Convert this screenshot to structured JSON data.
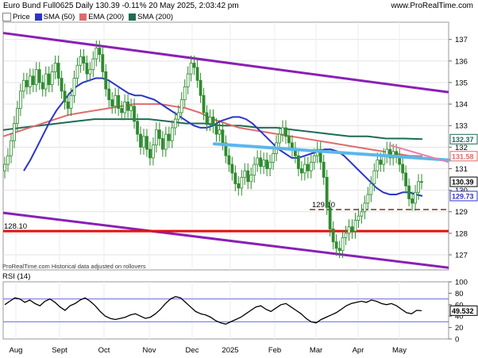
{
  "header": {
    "title": "Euro Bund Full0625 Daily 130.39 -0.11% 20 May 2025, 2:03:42 pm",
    "site": "www.ProRealTime.com"
  },
  "legend": [
    {
      "label": "Price",
      "color": "#ffffff",
      "border": "#888888"
    },
    {
      "label": "SMA (50)",
      "color": "#2b35c9"
    },
    {
      "label": "EMA (200)",
      "color": "#e06a6a"
    },
    {
      "label": "SMA (200)",
      "color": "#1e6b55"
    }
  ],
  "footnote": "ProRealTime.com Historical data adjusted on rollovers",
  "rsi_label": "RSI (14)",
  "colors": {
    "candle_up": "#2e8b2e",
    "candle_down": "#2e8b2e",
    "channel": "#8a1fb5",
    "trend_blue": "#5ab8ea",
    "trend_pink": "#f07ab0",
    "support_red": "#e01010",
    "dashed_brown": "#6b3a1e",
    "sma50": "#2b35c9",
    "ema200": "#e06a6a",
    "sma200": "#1e6b55",
    "rsi": "#000000",
    "rsi_band": "#6a6adf"
  },
  "chart_data": [
    {
      "type": "line",
      "name": "price",
      "x_labels": [
        "Aug",
        "Sept",
        "Oct",
        "Nov",
        "Dec",
        "2025",
        "Feb",
        "Mar",
        "Apr",
        "May"
      ],
      "ylim": [
        126.3,
        137.8
      ],
      "y_ticks": [
        127,
        128,
        129,
        130,
        131,
        132,
        133,
        134,
        135,
        136,
        137
      ],
      "last_price": 130.39,
      "change_pct": "-0.11%",
      "price_tags": [
        {
          "label": "132.37",
          "value": 132.37,
          "color": "#1e6b55"
        },
        {
          "label": "131.58",
          "value": 131.58,
          "color": "#e06a6a"
        },
        {
          "label": "130.39",
          "value": 130.39,
          "color": "#000000"
        },
        {
          "label": "129.73",
          "value": 129.73,
          "color": "#2b35c9"
        }
      ],
      "annotations": [
        {
          "label": "128.10",
          "value": 128.1
        },
        {
          "label": "129.10",
          "value": 129.1
        }
      ],
      "close_series": [
        131.2,
        131.6,
        132.3,
        133.1,
        133.8,
        134.6,
        135.1,
        134.8,
        135.3,
        134.9,
        135.6,
        135.0,
        134.7,
        135.4,
        134.9,
        135.5,
        135.9,
        135.2,
        134.6,
        134.1,
        133.8,
        134.4,
        135.2,
        135.8,
        136.2,
        135.9,
        135.4,
        135.6,
        136.1,
        136.6,
        136.3,
        135.5,
        134.7,
        134.2,
        133.9,
        134.4,
        133.8,
        133.6,
        134.1,
        133.7,
        133.9,
        133.2,
        132.6,
        132.0,
        132.5,
        131.9,
        131.5,
        132.1,
        132.8,
        132.4,
        131.9,
        132.6,
        132.3,
        132.9,
        133.3,
        133.6,
        134.2,
        134.8,
        135.4,
        135.9,
        135.7,
        135.1,
        134.4,
        133.6,
        133.1,
        133.4,
        133.0,
        132.6,
        132.8,
        132.2,
        131.6,
        131.2,
        130.8,
        130.3,
        130.1,
        130.6,
        130.9,
        130.4,
        130.7,
        131.2,
        131.5,
        131.1,
        131.4,
        131.0,
        131.3,
        131.7,
        132.2,
        132.6,
        132.9,
        132.5,
        132.2,
        131.9,
        131.6,
        131.0,
        130.8,
        131.2,
        130.9,
        131.3,
        131.6,
        131.9,
        131.3,
        130.6,
        129.2,
        128.2,
        127.6,
        127.3,
        127.2,
        127.8,
        128.0,
        128.3,
        128.1,
        128.6,
        128.8,
        129.0,
        129.4,
        129.8,
        130.3,
        130.9,
        131.4,
        131.2,
        131.6,
        131.9,
        131.5,
        131.8,
        131.6,
        131.2,
        130.8,
        130.2,
        129.6,
        129.4,
        129.9,
        130.4,
        130.39
      ],
      "series": [
        {
          "name": "SMA (50)",
          "values": [
            130.9,
            131.4,
            132.0,
            132.6,
            133.2,
            133.7,
            134.1,
            134.5,
            134.8,
            135.0,
            135.1,
            135.2,
            135.2,
            135.1,
            134.9,
            134.7,
            134.5,
            134.4,
            134.4,
            134.3,
            134.2,
            134.0,
            133.8,
            133.6,
            133.4,
            133.2,
            133.0,
            132.9,
            132.9,
            133.0,
            133.2,
            133.3,
            133.4,
            133.4,
            133.3,
            133.1,
            132.8,
            132.5,
            132.2,
            131.9,
            131.7,
            131.5,
            131.5,
            131.6,
            131.7,
            131.8,
            131.9,
            131.9,
            131.8,
            131.6,
            131.3,
            131.0,
            130.7,
            130.4,
            130.1,
            129.9,
            129.8,
            129.8,
            129.9,
            129.9,
            129.8,
            129.73
          ]
        },
        {
          "name": "EMA (200)",
          "values": [
            132.5,
            132.7,
            132.9,
            133.1,
            133.3,
            133.5,
            133.6,
            133.7,
            133.8,
            133.9,
            134.0,
            134.0,
            134.0,
            133.9,
            133.8,
            133.6,
            133.3,
            133.1,
            132.9,
            132.8,
            132.7,
            132.6,
            132.5,
            132.4,
            132.3,
            132.2,
            132.1,
            132.0,
            131.9,
            131.8,
            131.7,
            131.6,
            131.58
          ]
        },
        {
          "name": "SMA (200)",
          "values": [
            132.8,
            132.9,
            133.0,
            133.1,
            133.2,
            133.3,
            133.3,
            133.3,
            133.3,
            133.2,
            133.1,
            133.1,
            133.0,
            133.0,
            132.9,
            132.9,
            132.8,
            132.7,
            132.6,
            132.5,
            132.5,
            132.4,
            132.4,
            132.37
          ]
        }
      ]
    },
    {
      "type": "line",
      "name": "RSI (14)",
      "ylim": [
        0,
        100
      ],
      "y_ticks": [
        0,
        20,
        40,
        60,
        80,
        100
      ],
      "bands": [
        30,
        70
      ],
      "last_value": 49.532,
      "last_label": "49.532",
      "values": [
        60,
        66,
        72,
        70,
        64,
        68,
        62,
        58,
        66,
        70,
        64,
        56,
        50,
        58,
        62,
        68,
        72,
        66,
        58,
        48,
        40,
        36,
        34,
        36,
        38,
        42,
        44,
        40,
        36,
        38,
        44,
        52,
        62,
        70,
        74,
        72,
        64,
        56,
        48,
        44,
        42,
        38,
        32,
        28,
        26,
        30,
        34,
        38,
        44,
        50,
        56,
        58,
        52,
        48,
        54,
        60,
        62,
        56,
        50,
        44,
        36,
        30,
        28,
        34,
        38,
        42,
        46,
        52,
        58,
        62,
        64,
        66,
        64,
        68,
        66,
        62,
        60,
        62,
        58,
        52,
        46,
        44,
        50,
        49.5
      ]
    }
  ]
}
